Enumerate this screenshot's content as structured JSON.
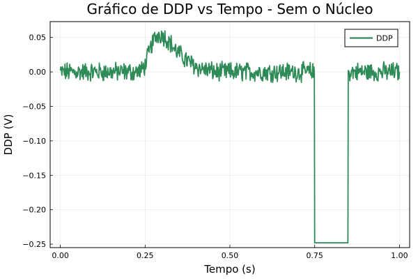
{
  "chart_data": {
    "type": "line",
    "title": "Gráfico de DDP vs Tempo - Sem o Núcleo",
    "xlabel": "Tempo (s)",
    "ylabel": "DDP (V)",
    "xlim": [
      -0.03,
      1.03
    ],
    "ylim": [
      -0.255,
      0.073
    ],
    "xticks": [
      0.0,
      0.25,
      0.5,
      0.75,
      1.0
    ],
    "xtick_labels": [
      "0.00",
      "0.25",
      "0.50",
      "0.75",
      "1.00"
    ],
    "yticks": [
      0.05,
      0.0,
      -0.05,
      -0.1,
      -0.15,
      -0.2,
      -0.25
    ],
    "ytick_labels": [
      "0.05",
      "0.00",
      "−0.05",
      "−0.10",
      "−0.15",
      "−0.20",
      "−0.25"
    ],
    "grid": true,
    "legend_position": "top-right",
    "series": [
      {
        "name": "DDP",
        "color": "#2e8b57",
        "x": [
          0.0,
          0.02,
          0.04,
          0.06,
          0.08,
          0.1,
          0.12,
          0.14,
          0.16,
          0.18,
          0.2,
          0.22,
          0.24,
          0.25,
          0.26,
          0.27,
          0.28,
          0.29,
          0.3,
          0.31,
          0.32,
          0.33,
          0.34,
          0.36,
          0.38,
          0.4,
          0.42,
          0.44,
          0.46,
          0.48,
          0.5,
          0.52,
          0.54,
          0.56,
          0.58,
          0.6,
          0.62,
          0.64,
          0.66,
          0.68,
          0.7,
          0.72,
          0.74,
          0.749,
          0.75,
          0.848,
          0.849,
          0.86,
          0.88,
          0.9,
          0.92,
          0.94,
          0.96,
          0.98,
          1.0
        ],
        "y": [
          0.0,
          0.0,
          0.0,
          0.0,
          0.0,
          0.0,
          0.0,
          0.0,
          0.0,
          0.0,
          0.0,
          0.0,
          0.002,
          0.01,
          0.025,
          0.04,
          0.05,
          0.055,
          0.054,
          0.05,
          0.045,
          0.038,
          0.031,
          0.022,
          0.014,
          0.008,
          0.004,
          0.002,
          0.0,
          0.0,
          0.0,
          0.0,
          0.0,
          0.0,
          0.0,
          0.0,
          0.0,
          0.0,
          0.0,
          0.0,
          0.0,
          0.0,
          0.0,
          0.0,
          -0.248,
          -0.248,
          0.0,
          0.0,
          0.0,
          0.0,
          0.0,
          0.0,
          0.0,
          0.0,
          0.0
        ]
      }
    ]
  }
}
